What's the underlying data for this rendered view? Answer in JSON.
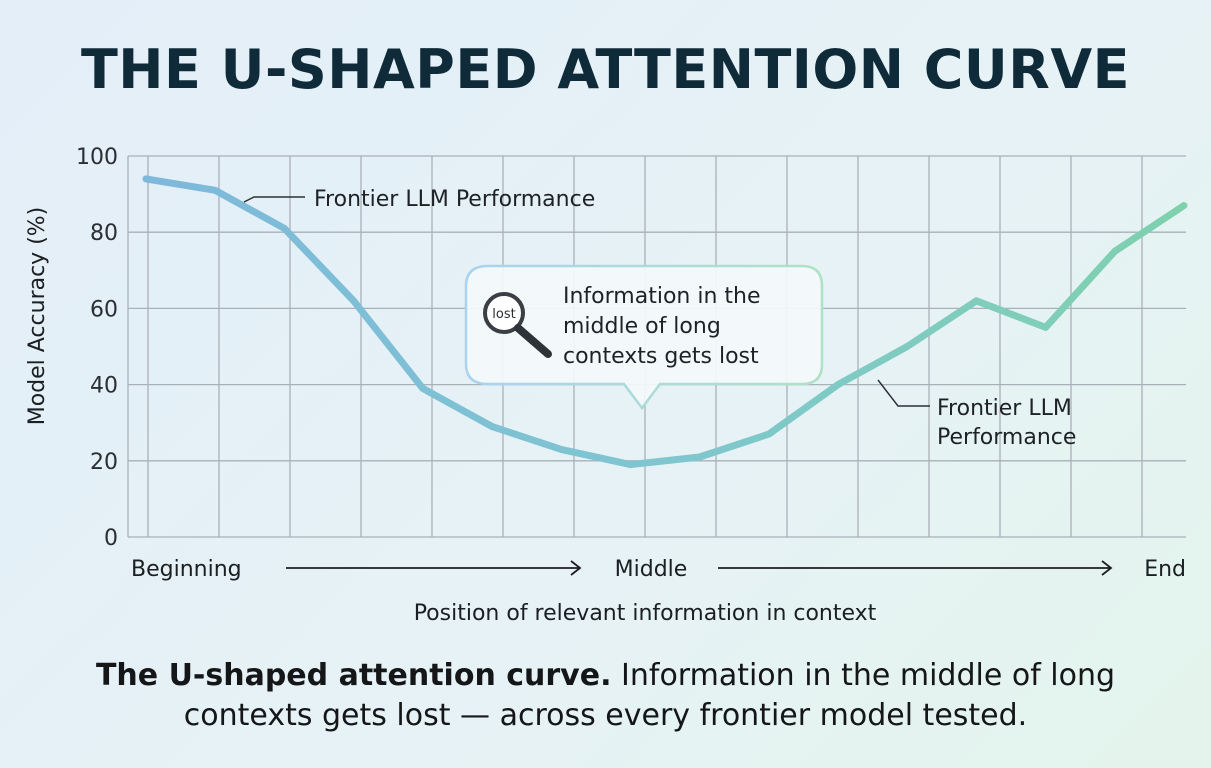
{
  "header": {
    "title": "THE U-SHAPED ATTENTION CURVE"
  },
  "chart_data": {
    "type": "line",
    "title": "THE U-SHAPED ATTENTION CURVE",
    "xlabel": "Position of relevant information in context",
    "ylabel": "Model Accuracy (%)",
    "ylim": [
      0,
      100
    ],
    "yticks": [
      "0",
      "20",
      "40",
      "60",
      "80",
      "100"
    ],
    "x_position_labels": [
      "Beginning",
      "Middle",
      "End"
    ],
    "series": [
      {
        "name": "Frontier LLM Performance",
        "x": [
          0,
          1,
          2,
          3,
          4,
          5,
          6,
          7,
          8,
          9,
          10,
          11,
          12,
          13,
          14,
          15
        ],
        "values": [
          94,
          91,
          81,
          62,
          39,
          29,
          23,
          19,
          21,
          27,
          40,
          50,
          62,
          55,
          75,
          87
        ]
      }
    ],
    "annotations": {
      "series_label_top": "Frontier LLM Performance",
      "series_label_right_line1": "Frontier LLM",
      "series_label_right_line2": "Performance",
      "callout_line1": "Information in the",
      "callout_line2": "middle of long",
      "callout_line3": "contexts gets lost",
      "magnifier_text": "lost"
    },
    "colors": {
      "start": "#7eb8db",
      "mid": "#7fc6cf",
      "end": "#7fd1ae",
      "grid": "#a9b1b8"
    }
  },
  "caption": {
    "bold": "The U-shaped attention curve.",
    "rest_line1": " Information in the middle of long",
    "line2": "contexts gets lost — across every frontier model tested."
  }
}
